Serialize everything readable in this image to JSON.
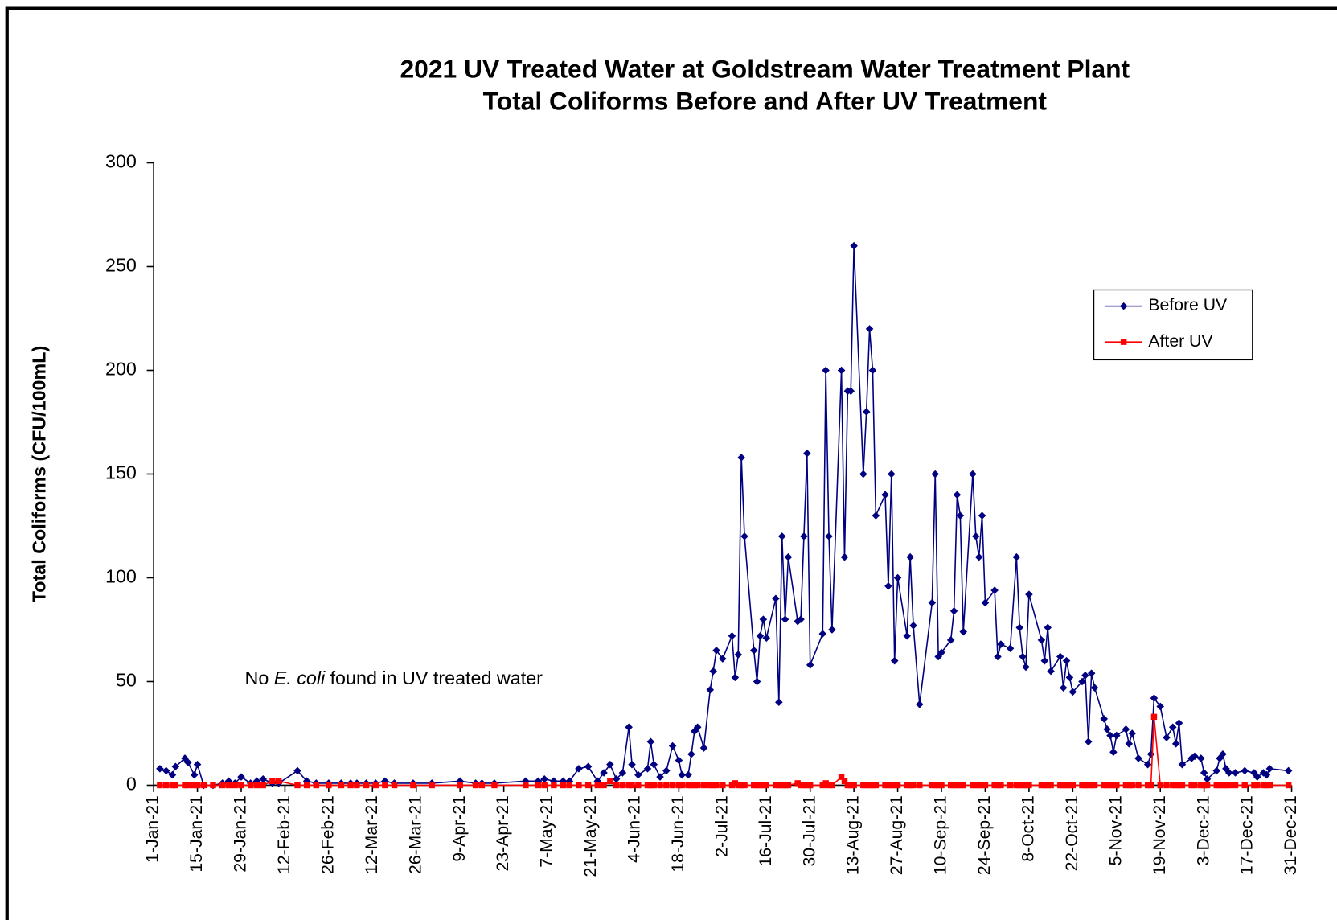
{
  "chart_data": {
    "type": "line",
    "title": [
      "2021 UV Treated Water at Goldstream Water Treatment Plant",
      "Total Coliforms Before and After UV Treatment"
    ],
    "ylabel": "Total Coliforms (CFU/100mL)",
    "annotation": {
      "before": "No",
      "italic": "E. coli",
      "after": "found in UV treated water"
    },
    "legend_position": "upper right",
    "xlim": [
      "2021-01-01",
      "2021-12-31"
    ],
    "ylim": [
      0,
      300
    ],
    "yticks": [
      0,
      50,
      100,
      150,
      200,
      250,
      300
    ],
    "xticks": [
      {
        "value": "2021-01-01",
        "label": "1-Jan-21"
      },
      {
        "value": "2021-01-15",
        "label": "15-Jan-21"
      },
      {
        "value": "2021-01-29",
        "label": "29-Jan-21"
      },
      {
        "value": "2021-02-12",
        "label": "12-Feb-21"
      },
      {
        "value": "2021-02-26",
        "label": "26-Feb-21"
      },
      {
        "value": "2021-03-12",
        "label": "12-Mar-21"
      },
      {
        "value": "2021-03-26",
        "label": "26-Mar-21"
      },
      {
        "value": "2021-04-09",
        "label": "9-Apr-21"
      },
      {
        "value": "2021-04-23",
        "label": "23-Apr-21"
      },
      {
        "value": "2021-05-07",
        "label": "7-May-21"
      },
      {
        "value": "2021-05-21",
        "label": "21-May-21"
      },
      {
        "value": "2021-06-04",
        "label": "4-Jun-21"
      },
      {
        "value": "2021-06-18",
        "label": "18-Jun-21"
      },
      {
        "value": "2021-07-02",
        "label": "2-Jul-21"
      },
      {
        "value": "2021-07-16",
        "label": "16-Jul-21"
      },
      {
        "value": "2021-07-30",
        "label": "30-Jul-21"
      },
      {
        "value": "2021-08-13",
        "label": "13-Aug-21"
      },
      {
        "value": "2021-08-27",
        "label": "27-Aug-21"
      },
      {
        "value": "2021-09-10",
        "label": "10-Sep-21"
      },
      {
        "value": "2021-09-24",
        "label": "24-Sep-21"
      },
      {
        "value": "2021-10-08",
        "label": "8-Oct-21"
      },
      {
        "value": "2021-10-22",
        "label": "22-Oct-21"
      },
      {
        "value": "2021-11-05",
        "label": "5-Nov-21"
      },
      {
        "value": "2021-11-19",
        "label": "19-Nov-21"
      },
      {
        "value": "2021-12-03",
        "label": "3-Dec-21"
      },
      {
        "value": "2021-12-17",
        "label": "17-Dec-21"
      },
      {
        "value": "2021-12-31",
        "label": "31-Dec-21"
      }
    ],
    "x": [
      "2021-01-03",
      "2021-01-05",
      "2021-01-07",
      "2021-01-08",
      "2021-01-11",
      "2021-01-12",
      "2021-01-14",
      "2021-01-15",
      "2021-01-17",
      "2021-01-20",
      "2021-01-23",
      "2021-01-25",
      "2021-01-27",
      "2021-01-29",
      "2021-02-01",
      "2021-02-03",
      "2021-02-05",
      "2021-02-08",
      "2021-02-10",
      "2021-02-16",
      "2021-02-19",
      "2021-02-22",
      "2021-02-26",
      "2021-03-02",
      "2021-03-05",
      "2021-03-07",
      "2021-03-10",
      "2021-03-13",
      "2021-03-16",
      "2021-03-19",
      "2021-03-25",
      "2021-03-31",
      "2021-04-09",
      "2021-04-14",
      "2021-04-16",
      "2021-04-20",
      "2021-04-30",
      "2021-05-04",
      "2021-05-06",
      "2021-05-09",
      "2021-05-12",
      "2021-05-14",
      "2021-05-17",
      "2021-05-20",
      "2021-05-23",
      "2021-05-25",
      "2021-05-27",
      "2021-05-29",
      "2021-05-31",
      "2021-06-02",
      "2021-06-03",
      "2021-06-05",
      "2021-06-08",
      "2021-06-09",
      "2021-06-10",
      "2021-06-12",
      "2021-06-14",
      "2021-06-16",
      "2021-06-18",
      "2021-06-19",
      "2021-06-21",
      "2021-06-22",
      "2021-06-23",
      "2021-06-24",
      "2021-06-26",
      "2021-06-28",
      "2021-06-29",
      "2021-06-30",
      "2021-07-02",
      "2021-07-05",
      "2021-07-06",
      "2021-07-07",
      "2021-07-08",
      "2021-07-09",
      "2021-07-12",
      "2021-07-13",
      "2021-07-14",
      "2021-07-15",
      "2021-07-16",
      "2021-07-19",
      "2021-07-20",
      "2021-07-21",
      "2021-07-22",
      "2021-07-23",
      "2021-07-26",
      "2021-07-27",
      "2021-07-28",
      "2021-07-29",
      "2021-07-30",
      "2021-08-03",
      "2021-08-04",
      "2021-08-05",
      "2021-08-06",
      "2021-08-09",
      "2021-08-10",
      "2021-08-11",
      "2021-08-12",
      "2021-08-13",
      "2021-08-16",
      "2021-08-17",
      "2021-08-18",
      "2021-08-19",
      "2021-08-20",
      "2021-08-23",
      "2021-08-24",
      "2021-08-25",
      "2021-08-26",
      "2021-08-27",
      "2021-08-30",
      "2021-08-31",
      "2021-09-01",
      "2021-09-03",
      "2021-09-07",
      "2021-09-08",
      "2021-09-09",
      "2021-09-10",
      "2021-09-13",
      "2021-09-14",
      "2021-09-15",
      "2021-09-16",
      "2021-09-17",
      "2021-09-20",
      "2021-09-21",
      "2021-09-22",
      "2021-09-23",
      "2021-09-24",
      "2021-09-27",
      "2021-09-28",
      "2021-09-29",
      "2021-10-02",
      "2021-10-04",
      "2021-10-05",
      "2021-10-06",
      "2021-10-07",
      "2021-10-08",
      "2021-10-12",
      "2021-10-13",
      "2021-10-14",
      "2021-10-15",
      "2021-10-18",
      "2021-10-19",
      "2021-10-20",
      "2021-10-21",
      "2021-10-22",
      "2021-10-25",
      "2021-10-26",
      "2021-10-27",
      "2021-10-28",
      "2021-10-29",
      "2021-11-01",
      "2021-11-02",
      "2021-11-03",
      "2021-11-04",
      "2021-11-05",
      "2021-11-08",
      "2021-11-09",
      "2021-11-10",
      "2021-11-12",
      "2021-11-15",
      "2021-11-16",
      "2021-11-17",
      "2021-11-19",
      "2021-11-21",
      "2021-11-23",
      "2021-11-24",
      "2021-11-25",
      "2021-11-26",
      "2021-11-29",
      "2021-11-30",
      "2021-12-02",
      "2021-12-03",
      "2021-12-04",
      "2021-12-07",
      "2021-12-08",
      "2021-12-09",
      "2021-12-10",
      "2021-12-11",
      "2021-12-13",
      "2021-12-16",
      "2021-12-19",
      "2021-12-20",
      "2021-12-22",
      "2021-12-23",
      "2021-12-24",
      "2021-12-30"
    ],
    "series": [
      {
        "name": "Before UV",
        "color": "#000080",
        "marker": "diamond",
        "values": [
          8,
          7,
          5,
          9,
          13,
          11,
          5,
          10,
          0,
          0,
          1,
          2,
          1,
          4,
          1,
          2,
          3,
          1,
          1,
          7,
          2,
          1,
          1,
          1,
          1,
          1,
          1,
          1,
          2,
          1,
          1,
          1,
          2,
          1,
          1,
          1,
          2,
          2,
          3,
          2,
          2,
          2,
          8,
          9,
          2,
          6,
          10,
          3,
          6,
          28,
          10,
          5,
          8,
          21,
          10,
          4,
          7,
          19,
          12,
          5,
          5,
          15,
          26,
          28,
          18,
          46,
          55,
          65,
          61,
          72,
          52,
          63,
          158,
          120,
          65,
          50,
          72,
          80,
          71,
          90,
          40,
          120,
          80,
          110,
          79,
          80,
          120,
          160,
          58,
          73,
          200,
          120,
          75,
          200,
          110,
          190,
          190,
          260,
          150,
          180,
          220,
          200,
          130,
          140,
          96,
          150,
          60,
          100,
          72,
          110,
          77,
          39,
          88,
          150,
          62,
          64,
          70,
          84,
          140,
          130,
          74,
          150,
          120,
          110,
          130,
          88,
          94,
          62,
          68,
          66,
          110,
          76,
          62,
          57,
          92,
          70,
          60,
          76,
          55,
          62,
          47,
          60,
          52,
          45,
          50,
          53,
          21,
          54,
          47,
          32,
          27,
          24,
          16,
          24,
          27,
          20,
          25,
          13,
          10,
          15,
          42,
          38,
          23,
          28,
          20,
          30,
          10,
          13,
          14,
          13,
          6,
          3,
          7,
          13,
          15,
          8,
          6,
          6,
          7,
          6,
          4,
          6,
          5,
          8,
          7
        ]
      },
      {
        "name": "After UV",
        "color": "#ff0000",
        "marker": "square",
        "values": [
          0,
          0,
          0,
          0,
          0,
          0,
          0,
          0,
          0,
          0,
          0,
          0,
          0,
          0,
          0,
          0,
          0,
          2,
          2,
          0,
          0,
          0,
          0,
          0,
          0,
          0,
          0,
          0,
          0,
          0,
          0,
          0,
          0,
          0,
          0,
          0,
          0,
          0,
          0,
          0,
          0,
          0,
          0,
          0,
          0,
          0,
          2,
          0,
          0,
          0,
          0,
          0,
          0,
          0,
          0,
          0,
          0,
          0,
          0,
          0,
          0,
          0,
          0,
          0,
          0,
          0,
          0,
          0,
          0,
          0,
          1,
          0,
          0,
          0,
          0,
          0,
          0,
          0,
          0,
          0,
          0,
          0,
          0,
          0,
          1,
          0,
          0,
          0,
          0,
          0,
          1,
          0,
          0,
          4,
          2,
          0,
          0,
          0,
          0,
          0,
          0,
          0,
          0,
          0,
          0,
          0,
          0,
          0,
          0,
          0,
          0,
          0,
          0,
          0,
          0,
          0,
          0,
          0,
          0,
          0,
          0,
          0,
          0,
          0,
          0,
          0,
          0,
          0,
          0,
          0,
          0,
          0,
          0,
          0,
          0,
          0,
          0,
          0,
          0,
          0,
          0,
          0,
          0,
          0,
          0,
          0,
          0,
          0,
          0,
          0,
          0,
          0,
          0,
          0,
          0,
          0,
          0,
          0,
          0,
          0,
          33,
          0,
          0,
          0,
          0,
          0,
          0,
          0,
          0,
          0,
          0,
          0,
          0,
          0,
          0,
          0,
          0,
          0,
          0,
          0,
          0,
          0,
          0,
          0,
          0
        ]
      }
    ]
  }
}
